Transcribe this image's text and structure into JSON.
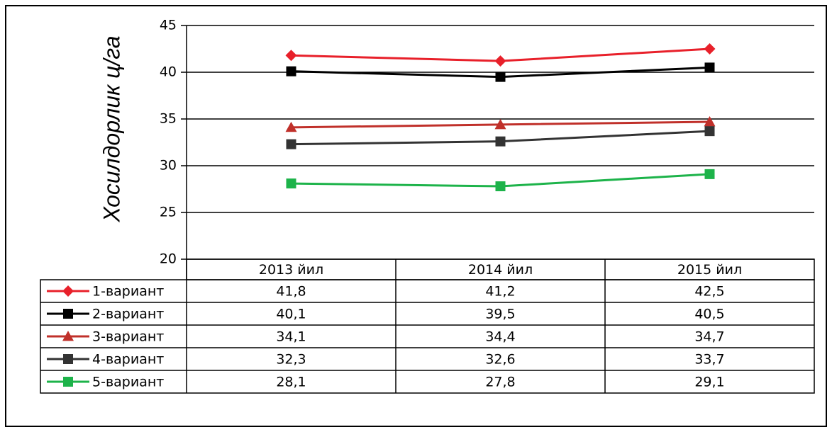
{
  "chart_data": {
    "type": "line",
    "y_label": "Хосилдорлик ц/га",
    "categories": [
      "2013 йил",
      "2014 йил",
      "2015 йил"
    ],
    "ylim": [
      20,
      45
    ],
    "yticks": [
      20,
      25,
      30,
      35,
      40,
      45
    ],
    "grid": true,
    "series": [
      {
        "name": "1-вариант",
        "color": "#e8202a",
        "marker": "diamond",
        "values": [
          41.8,
          41.2,
          42.5
        ],
        "value_labels": [
          "41,8",
          "41,2",
          "42,5"
        ]
      },
      {
        "name": "2-вариант",
        "color": "#000000",
        "marker": "square",
        "values": [
          40.1,
          39.5,
          40.5
        ],
        "value_labels": [
          "40,1",
          "39,5",
          "40,5"
        ]
      },
      {
        "name": "3-вариант",
        "color": "#c0302a",
        "marker": "triangle",
        "values": [
          34.1,
          34.4,
          34.7
        ],
        "value_labels": [
          "34,1",
          "34,4",
          "34,7"
        ]
      },
      {
        "name": "4-вариант",
        "color": "#333333",
        "marker": "square",
        "values": [
          32.3,
          32.6,
          33.7
        ],
        "value_labels": [
          "32,3",
          "32,6",
          "33,7"
        ]
      },
      {
        "name": "5-вариант",
        "color": "#1db34a",
        "marker": "square",
        "values": [
          28.1,
          27.8,
          29.1
        ],
        "value_labels": [
          "28,1",
          "27,8",
          "29,1"
        ]
      }
    ]
  }
}
